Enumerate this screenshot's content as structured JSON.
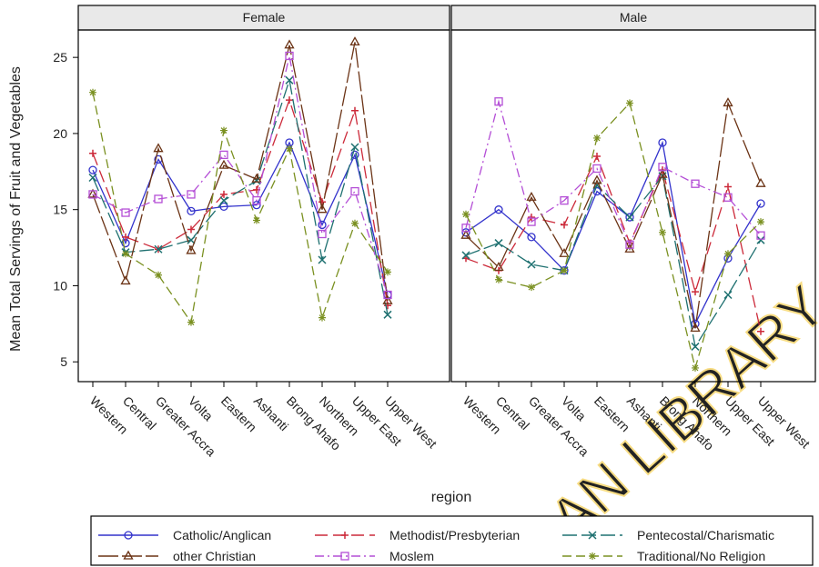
{
  "chart_data": {
    "type": "line",
    "xlabel": "region",
    "ylabel": "Mean Total Servings of Fruit and Vegetables",
    "ylim": [
      3.7,
      26.8
    ],
    "yticks": [
      5,
      10,
      15,
      20,
      25
    ],
    "grid": false,
    "legend_position": "bottom",
    "categories": [
      "Western",
      "Central",
      "Greater Accra",
      "Volta",
      "Eastern",
      "Ashanti",
      "Brong Ahafo",
      "Northern",
      "Upper East",
      "Upper West"
    ],
    "panels": [
      {
        "title": "Female",
        "series": [
          {
            "name": "Catholic/Anglican",
            "values": [
              17.6,
              12.8,
              18.3,
              14.9,
              15.2,
              15.3,
              19.4,
              14.0,
              18.6,
              9.4
            ]
          },
          {
            "name": "Methodist/Presbyterian",
            "values": [
              18.7,
              13.2,
              12.4,
              13.7,
              16.0,
              16.3,
              22.2,
              15.5,
              21.5,
              8.7
            ]
          },
          {
            "name": "Pentecostal/Charismatic",
            "values": [
              17.1,
              12.2,
              12.4,
              13.0,
              15.6,
              16.9,
              23.5,
              11.7,
              19.1,
              8.1
            ]
          },
          {
            "name": "other Christian",
            "values": [
              16.0,
              10.3,
              19.0,
              12.3,
              17.9,
              17.0,
              25.8,
              15.0,
              26.0,
              9.0
            ]
          },
          {
            "name": "Moslem",
            "values": [
              16.0,
              14.8,
              15.7,
              16.0,
              18.6,
              15.6,
              25.1,
              13.4,
              16.2,
              9.4
            ]
          },
          {
            "name": "Traditional/No Religion",
            "values": [
              22.7,
              12.1,
              10.7,
              7.6,
              20.2,
              14.3,
              19.0,
              7.9,
              14.1,
              10.9
            ]
          }
        ]
      },
      {
        "title": "Male",
        "series": [
          {
            "name": "Catholic/Anglican",
            "values": [
              13.5,
              15.0,
              13.2,
              11.0,
              16.2,
              14.5,
              19.4,
              7.5,
              11.8,
              15.4
            ]
          },
          {
            "name": "Methodist/Presbyterian",
            "values": [
              11.8,
              11.0,
              14.5,
              14.0,
              18.5,
              12.8,
              17.6,
              9.6,
              16.5,
              7.0
            ]
          },
          {
            "name": "Pentecostal/Charismatic",
            "values": [
              12.0,
              12.8,
              11.4,
              11.0,
              16.6,
              14.5,
              17.2,
              6.0,
              9.4,
              13.0
            ]
          },
          {
            "name": "other Christian",
            "values": [
              13.3,
              11.2,
              15.8,
              12.1,
              16.9,
              12.4,
              17.3,
              7.2,
              22.0,
              16.7
            ]
          },
          {
            "name": "Moslem",
            "values": [
              13.8,
              22.1,
              14.2,
              15.6,
              17.7,
              12.7,
              17.8,
              16.7,
              15.8,
              13.3
            ]
          },
          {
            "name": "Traditional/No Religion",
            "values": [
              14.7,
              10.4,
              9.9,
              11.0,
              19.7,
              22.0,
              13.5,
              4.6,
              12.1,
              14.2
            ]
          }
        ]
      }
    ],
    "series_styles": [
      {
        "name": "Catholic/Anglican",
        "color": "#3333cc",
        "dash": "",
        "marker": "circle"
      },
      {
        "name": "Methodist/Presbyterian",
        "color": "#cc2a3a",
        "dash": "14,6",
        "marker": "plus"
      },
      {
        "name": "Pentecostal/Charismatic",
        "color": "#1e7070",
        "dash": "16,5",
        "marker": "x"
      },
      {
        "name": "other Christian",
        "color": "#6b3315",
        "dash": "22,4",
        "marker": "triangle"
      },
      {
        "name": "Moslem",
        "color": "#b44ed6",
        "dash": "10,4,2,4",
        "marker": "square"
      },
      {
        "name": "Traditional/No Religion",
        "color": "#7a9020",
        "dash": "10,5",
        "marker": "star"
      }
    ],
    "legend_order": [
      "Catholic/Anglican",
      "Methodist/Presbyterian",
      "Pentecostal/Charismatic",
      "other Christian",
      "Moslem",
      "Traditional/No Religion"
    ]
  },
  "watermark": {
    "text": "AN LIBRARY",
    "color": "#f7dc83"
  }
}
